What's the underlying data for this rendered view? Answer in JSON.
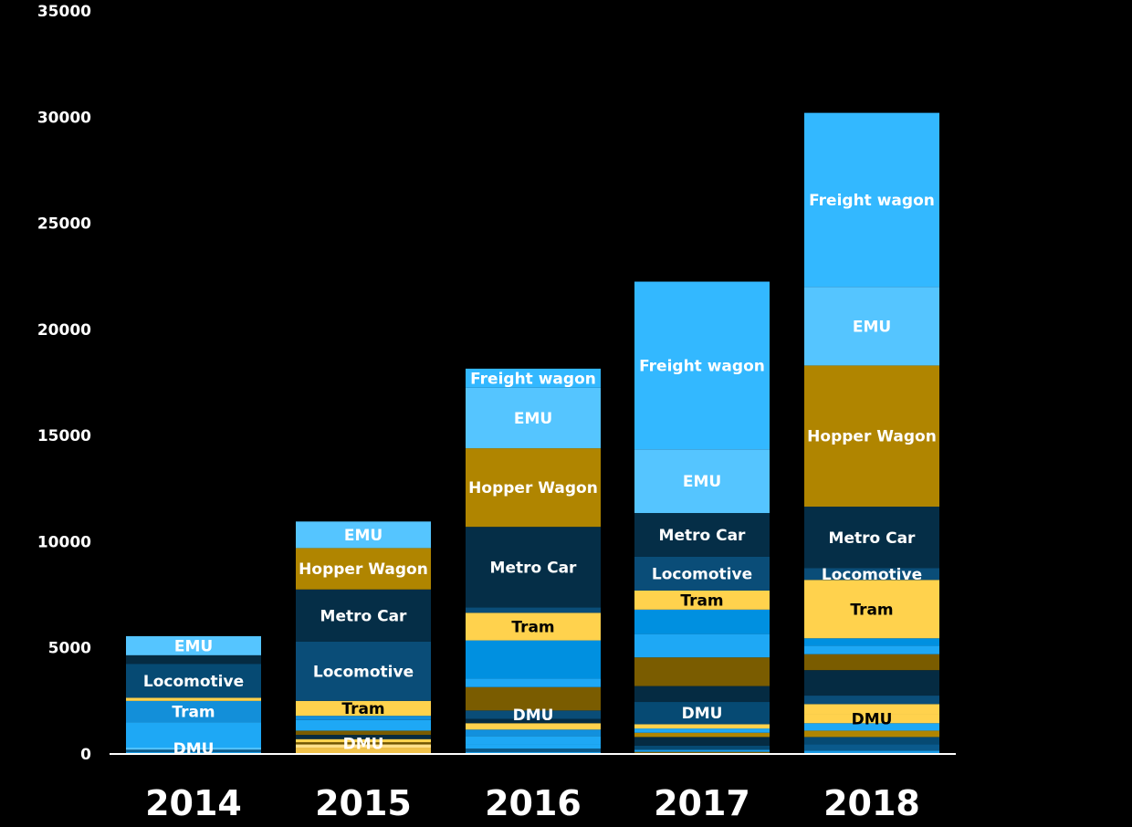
{
  "chart_data": {
    "type": "bar",
    "stacked": true,
    "title": "",
    "xlabel": "",
    "ylabel": "",
    "ylim": [
      0,
      35000
    ],
    "yticks": [
      0,
      5000,
      10000,
      15000,
      20000,
      25000,
      30000,
      35000
    ],
    "categories": [
      "2014",
      "2015",
      "2016",
      "2017",
      "2018"
    ],
    "grid": false,
    "legend": "none",
    "colors": {
      "bg": "#000000",
      "axis": "#ffffff",
      "text_light": "#ffffff",
      "text_dark": "#000000"
    },
    "stacks": [
      {
        "category": "2014",
        "segments": [
          {
            "value": 100,
            "color": "#1a9be6",
            "label": ""
          },
          {
            "value": 100,
            "color": "#0a5a8c",
            "label": ""
          },
          {
            "value": 100,
            "color": "#52c3ff",
            "label": "DMU"
          },
          {
            "value": 1200,
            "color": "#1ea8f5",
            "label": ""
          },
          {
            "value": 1000,
            "color": "#138fd9",
            "label": "Tram"
          },
          {
            "value": 150,
            "color": "#ffd24d",
            "label": ""
          },
          {
            "value": 1600,
            "color": "#064a73",
            "label": "Locomotive"
          },
          {
            "value": 400,
            "color": "#052b42",
            "label": ""
          },
          {
            "value": 900,
            "color": "#55c5ff",
            "label": "EMU"
          }
        ]
      },
      {
        "category": "2015",
        "segments": [
          {
            "value": 300,
            "color": "#f0c24a",
            "label": ""
          },
          {
            "value": 150,
            "color": "#ffe08a",
            "label": ""
          },
          {
            "value": 100,
            "color": "#6f5500",
            "label": "DMU"
          },
          {
            "value": 150,
            "color": "#ffd24d",
            "label": ""
          },
          {
            "value": 200,
            "color": "#052b42",
            "label": ""
          },
          {
            "value": 200,
            "color": "#7a5c00",
            "label": ""
          },
          {
            "value": 500,
            "color": "#1ea8f5",
            "label": ""
          },
          {
            "value": 200,
            "color": "#1290dd",
            "label": ""
          },
          {
            "value": 700,
            "color": "#ffd24d",
            "label": "Tram"
          },
          {
            "value": 2800,
            "color": "#0a4d78",
            "label": "Locomotive"
          },
          {
            "value": 2450,
            "color": "#052e47",
            "label": "Metro Car"
          },
          {
            "value": 1950,
            "color": "#b08500",
            "label": "Hopper Wagon"
          },
          {
            "value": 1250,
            "color": "#55c5ff",
            "label": "EMU"
          }
        ]
      },
      {
        "category": "2016",
        "segments": [
          {
            "value": 100,
            "color": "#1a9be6",
            "label": ""
          },
          {
            "value": 150,
            "color": "#0a5a8c",
            "label": ""
          },
          {
            "value": 200,
            "color": "#1ea8f5",
            "label": ""
          },
          {
            "value": 400,
            "color": "#1ea8f5",
            "label": ""
          },
          {
            "value": 300,
            "color": "#1290dd",
            "label": ""
          },
          {
            "value": 300,
            "color": "#ffd24d",
            "label": ""
          },
          {
            "value": 200,
            "color": "#052b42",
            "label": ""
          },
          {
            "value": 400,
            "color": "#0a4d78",
            "label": "DMU"
          },
          {
            "value": 1100,
            "color": "#7a5c00",
            "label": ""
          },
          {
            "value": 400,
            "color": "#1ea8f5",
            "label": ""
          },
          {
            "value": 1800,
            "color": "#0090e0",
            "label": ""
          },
          {
            "value": 1300,
            "color": "#ffd24d",
            "label": "Tram"
          },
          {
            "value": 250,
            "color": "#0a4d78",
            "label": ""
          },
          {
            "value": 3800,
            "color": "#052e47",
            "label": "Metro Car"
          },
          {
            "value": 3700,
            "color": "#b08500",
            "label": "Hopper Wagon"
          },
          {
            "value": 2850,
            "color": "#55c5ff",
            "label": "EMU"
          },
          {
            "value": 900,
            "color": "#33b8ff",
            "label": "Freight wagon"
          }
        ]
      },
      {
        "category": "2017",
        "segments": [
          {
            "value": 100,
            "color": "#7a5c00",
            "label": ""
          },
          {
            "value": 100,
            "color": "#1a9be6",
            "label": ""
          },
          {
            "value": 200,
            "color": "#064a73",
            "label": ""
          },
          {
            "value": 400,
            "color": "#052b42",
            "label": ""
          },
          {
            "value": 200,
            "color": "#b08500",
            "label": ""
          },
          {
            "value": 200,
            "color": "#1ea8f5",
            "label": ""
          },
          {
            "value": 200,
            "color": "#ffd24d",
            "label": ""
          },
          {
            "value": 1050,
            "color": "#064a73",
            "label": "DMU"
          },
          {
            "value": 750,
            "color": "#052b42",
            "label": ""
          },
          {
            "value": 1350,
            "color": "#7a5c00",
            "label": ""
          },
          {
            "value": 1100,
            "color": "#1ea8f5",
            "label": ""
          },
          {
            "value": 1150,
            "color": "#0090e0",
            "label": ""
          },
          {
            "value": 900,
            "color": "#ffd24d",
            "label": "Tram"
          },
          {
            "value": 1600,
            "color": "#0a4d78",
            "label": "Locomotive"
          },
          {
            "value": 2050,
            "color": "#052e47",
            "label": "Metro Car"
          },
          {
            "value": 3000,
            "color": "#55c5ff",
            "label": "EMU"
          },
          {
            "value": 7900,
            "color": "#33b8ff",
            "label": "Freight wagon"
          }
        ]
      },
      {
        "category": "2018",
        "segments": [
          {
            "value": 150,
            "color": "#1a9be6",
            "label": ""
          },
          {
            "value": 300,
            "color": "#0a5a8c",
            "label": ""
          },
          {
            "value": 350,
            "color": "#064a73",
            "label": ""
          },
          {
            "value": 300,
            "color": "#b08500",
            "label": ""
          },
          {
            "value": 350,
            "color": "#1ea8f5",
            "label": ""
          },
          {
            "value": 400,
            "color": "#ffd24d",
            "label": "DMU"
          },
          {
            "value": 500,
            "color": "#ffd24d",
            "label": ""
          },
          {
            "value": 400,
            "color": "#0a4d78",
            "label": ""
          },
          {
            "value": 1200,
            "color": "#052b42",
            "label": ""
          },
          {
            "value": 750,
            "color": "#7a5c00",
            "label": ""
          },
          {
            "value": 400,
            "color": "#1ea8f5",
            "label": ""
          },
          {
            "value": 350,
            "color": "#0090e0",
            "label": ""
          },
          {
            "value": 2750,
            "color": "#ffd24d",
            "label": "Tram"
          },
          {
            "value": 550,
            "color": "#0a4d78",
            "label": "Locomotive"
          },
          {
            "value": 2900,
            "color": "#052e47",
            "label": "Metro Car"
          },
          {
            "value": 6650,
            "color": "#b08500",
            "label": "Hopper Wagon"
          },
          {
            "value": 3700,
            "color": "#55c5ff",
            "label": "EMU"
          },
          {
            "value": 8200,
            "color": "#33b8ff",
            "label": "Freight wagon"
          }
        ]
      }
    ]
  }
}
